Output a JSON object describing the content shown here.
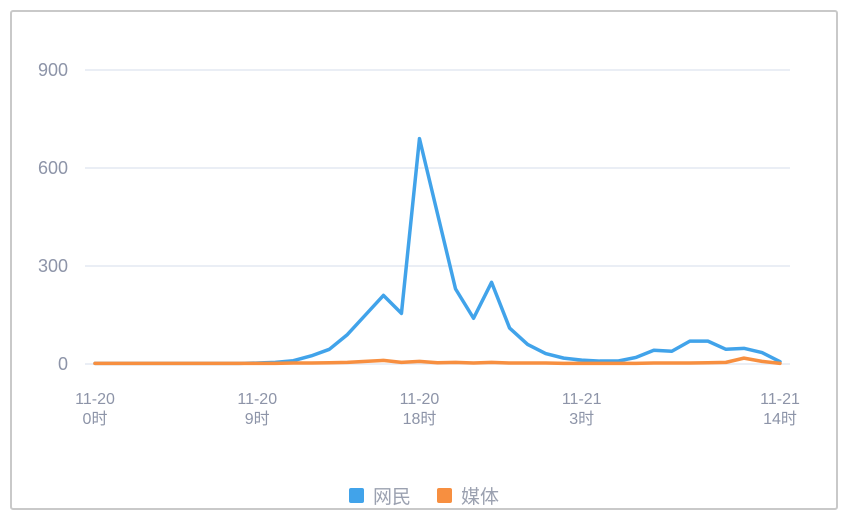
{
  "chart_data": {
    "type": "line",
    "title": "",
    "x_axis": {
      "n_points": 39,
      "unit": "hourly",
      "tick_labels": [
        {
          "date": "11-20",
          "hour": "0时",
          "index": 0
        },
        {
          "date": "11-20",
          "hour": "9时",
          "index": 9
        },
        {
          "date": "11-20",
          "hour": "18时",
          "index": 18
        },
        {
          "date": "11-21",
          "hour": "3时",
          "index": 27
        },
        {
          "date": "11-21",
          "hour": "14时",
          "index": 38
        }
      ]
    },
    "y_axis": {
      "ticks": [
        0,
        300,
        600,
        900
      ],
      "min": 0,
      "max": 900
    },
    "grid": "horizontal-gridlines-only",
    "legend_position": "bottom-center",
    "series": [
      {
        "name": "网民",
        "color": "#41a3ea",
        "values": [
          2,
          2,
          2,
          2,
          2,
          2,
          2,
          2,
          2,
          3,
          5,
          10,
          25,
          45,
          90,
          150,
          210,
          155,
          690,
          460,
          230,
          140,
          250,
          110,
          60,
          32,
          18,
          12,
          9,
          9,
          20,
          42,
          39,
          70,
          70,
          45,
          48,
          35,
          7
        ]
      },
      {
        "name": "媒体",
        "color": "#f78f40",
        "values": [
          2,
          2,
          2,
          2,
          2,
          2,
          2,
          2,
          2,
          2,
          2,
          3,
          3,
          4,
          5,
          8,
          11,
          5,
          8,
          4,
          5,
          3,
          5,
          3,
          3,
          3,
          2,
          2,
          2,
          2,
          2,
          3,
          3,
          3,
          4,
          5,
          18,
          8,
          2
        ]
      }
    ]
  },
  "colors": {
    "axis_label": "#8d94a8",
    "gridline": "#e4e8f2",
    "frame_border": "#c9c9c9",
    "legend_text": "#9ba1b0",
    "background": "#ffffff"
  }
}
